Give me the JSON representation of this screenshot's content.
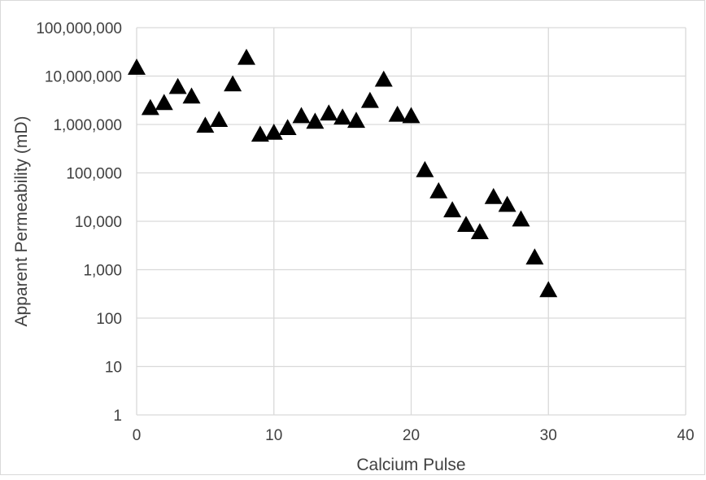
{
  "chart_data": {
    "type": "scatter",
    "title": "",
    "xlabel": "Calcium Pulse",
    "ylabel": "Apparent Permeability (mD)",
    "x_scale": "linear",
    "y_scale": "log",
    "xlim": [
      0,
      40
    ],
    "ylim": [
      1,
      100000000
    ],
    "x_ticks": [
      0,
      10,
      20,
      30,
      40
    ],
    "x_tick_labels": [
      "0",
      "10",
      "20",
      "30",
      "40"
    ],
    "y_ticks": [
      1,
      10,
      100,
      1000,
      10000,
      100000,
      1000000,
      10000000,
      100000000
    ],
    "y_tick_labels": [
      "1",
      "10",
      "100",
      "1,000",
      "10,000",
      "100,000",
      "1,000,000",
      "10,000,000",
      "100,000,000"
    ],
    "grid": true,
    "marker": "triangle",
    "marker_color": "#000000",
    "series": [
      {
        "x": [
          0,
          1,
          2,
          3,
          4,
          5,
          6,
          7,
          8,
          9,
          10,
          11,
          12,
          13,
          14,
          15,
          16,
          17,
          18,
          19,
          20,
          21,
          22,
          23,
          24,
          25,
          26,
          27,
          28,
          29,
          30
        ],
        "y": [
          15000000,
          2200000,
          2800000,
          6000000,
          3800000,
          950000,
          1250000,
          6800000,
          24000000,
          620000,
          680000,
          850000,
          1500000,
          1150000,
          1700000,
          1400000,
          1200000,
          3100000,
          8500000,
          1600000,
          1500000,
          115000,
          42000,
          17000,
          8500,
          6000,
          32000,
          22000,
          11000,
          1800,
          380
        ]
      }
    ]
  },
  "colors": {
    "grid": "#d9d9d9",
    "text": "#404040",
    "marker": "#000000",
    "frame": "#d9d9d9"
  }
}
